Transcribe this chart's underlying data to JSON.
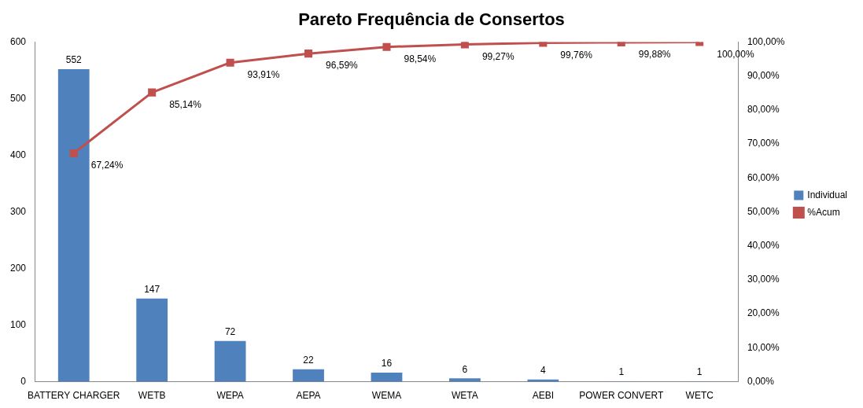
{
  "chart_data": {
    "type": "bar",
    "title": "Pareto Frequência de Consertos",
    "categories": [
      "BATTERY CHARGER",
      "WETB",
      "WEPA",
      "AEPA",
      "WEMA",
      "WETA",
      "AEBI",
      "POWER CONVERT",
      "WETC"
    ],
    "series": [
      {
        "name": "Individual",
        "color": "#4f81bd",
        "values": [
          552,
          147,
          72,
          22,
          16,
          6,
          4,
          1,
          1
        ],
        "value_labels": [
          "552",
          "147",
          "72",
          "22",
          "16",
          "6",
          "4",
          "1",
          "1"
        ]
      },
      {
        "name": "%Acum",
        "type": "line",
        "axis": "y2",
        "color": "#c0504d",
        "values": [
          67.24,
          85.14,
          93.91,
          96.59,
          98.54,
          99.27,
          99.76,
          99.88,
          100
        ],
        "value_labels": [
          "67,24%",
          "85,14%",
          "93,91%",
          "96,59%",
          "98,54%",
          "99,27%",
          "99,76%",
          "99,88%",
          "100,00%"
        ]
      }
    ],
    "ylim": [
      0,
      600
    ],
    "yticks": [
      0,
      100,
      200,
      300,
      400,
      500,
      600
    ],
    "y2lim": [
      0,
      100
    ],
    "y2ticks": [
      {
        "value": 0,
        "label": "0,00%"
      },
      {
        "value": 10,
        "label": "10,00%"
      },
      {
        "value": 20,
        "label": "20,00%"
      },
      {
        "value": 30,
        "label": "30,00%"
      },
      {
        "value": 40,
        "label": "40,00%"
      },
      {
        "value": 50,
        "label": "50,00%"
      },
      {
        "value": 60,
        "label": "60,00%"
      },
      {
        "value": 70,
        "label": "70,00%"
      },
      {
        "value": 80,
        "label": "80,00%"
      },
      {
        "value": 90,
        "label": "90,00%"
      },
      {
        "value": 100,
        "label": "100,00%"
      }
    ],
    "grid": false,
    "legend": "right",
    "marker": "square",
    "line_style": "solid"
  }
}
